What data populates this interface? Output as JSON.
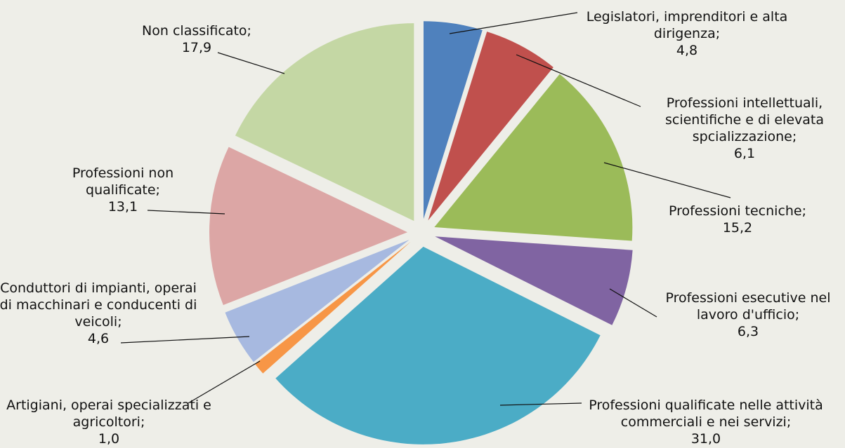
{
  "chart_data": {
    "type": "pie",
    "categories": [
      "Legislatori, imprenditori e alta dirigenza;",
      "Professioni intellettuali, scientifiche e di elevata spcializzazione;",
      "Professioni tecniche;",
      "Professioni esecutive nel lavoro d'ufficio;",
      "Professioni qualificate nelle attività commerciali e nei servizi;",
      "Artigiani, operai specializzati e agricoltori;",
      "Conduttori di impianti, operai di macchinari e conducenti di veicoli;",
      "Professioni non qualificate;",
      "Non classificato;"
    ],
    "values": [
      4.8,
      6.1,
      15.2,
      6.3,
      31.0,
      1.0,
      4.6,
      13.1,
      17.9
    ],
    "value_labels": [
      "4,8",
      "6,1",
      "15,2",
      "6,3",
      "31,0",
      "1,0",
      "4,6",
      "13,1",
      "17,9"
    ],
    "colors": [
      "#4f81bd",
      "#c0504d",
      "#9bbb59",
      "#8064a2",
      "#4bacc6",
      "#f79646",
      "#a7b9e0",
      "#dca6a5",
      "#c4d7a4"
    ]
  }
}
